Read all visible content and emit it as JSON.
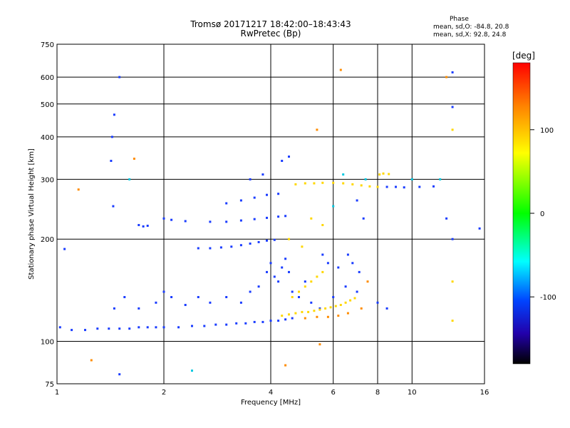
{
  "chart_data": {
    "type": "scatter",
    "title": "Tromsø 20171217 18:42:00–18:43:43",
    "subtitle": "RwPretec (Bp)",
    "xlabel": "Frequency [MHz]",
    "ylabel": "Stationary phase Virtual Height [km]",
    "x_scale": "log",
    "y_scale": "log",
    "xlim": [
      1,
      16
    ],
    "ylim": [
      75,
      750
    ],
    "x_ticks": [
      1,
      2,
      4,
      6,
      8,
      10,
      16
    ],
    "y_ticks": [
      75,
      100,
      200,
      300,
      400,
      500,
      600,
      750
    ],
    "grid": true,
    "phase_header": "Phase",
    "phase_o": "mean, sd,O: -84.8, 20.8",
    "phase_x": "mean, sd,X:  92.8, 24.8",
    "colorbar": {
      "label": "[deg]",
      "range": [
        -180,
        180
      ],
      "ticks": [
        100,
        0,
        -100
      ],
      "colors": [
        "#ff0000",
        "#ff7f00",
        "#ffff00",
        "#00ff00",
        "#00ffff",
        "#0044ff",
        "#2200aa",
        "#000000"
      ]
    },
    "series": [
      {
        "points": [
          {
            "f": 1.1,
            "h": 108
          },
          {
            "f": 1.2,
            "h": 108
          },
          {
            "f": 1.3,
            "h": 109
          },
          {
            "f": 1.4,
            "h": 109
          },
          {
            "f": 1.5,
            "h": 109
          },
          {
            "f": 1.6,
            "h": 109
          },
          {
            "f": 1.7,
            "h": 110
          },
          {
            "f": 1.8,
            "h": 110
          },
          {
            "f": 1.9,
            "h": 110
          },
          {
            "f": 2.0,
            "h": 110
          },
          {
            "f": 2.2,
            "h": 110
          },
          {
            "f": 2.4,
            "h": 111
          },
          {
            "f": 2.6,
            "h": 111
          },
          {
            "f": 2.8,
            "h": 112
          },
          {
            "f": 3.0,
            "h": 112
          },
          {
            "f": 3.2,
            "h": 113
          },
          {
            "f": 3.4,
            "h": 113
          },
          {
            "f": 3.6,
            "h": 114
          },
          {
            "f": 3.8,
            "h": 114
          },
          {
            "f": 4.0,
            "h": 115
          },
          {
            "f": 4.2,
            "h": 115
          },
          {
            "f": 4.4,
            "h": 116
          },
          {
            "f": 4.6,
            "h": 117
          },
          {
            "f": 1.45,
            "h": 125
          },
          {
            "f": 1.55,
            "h": 135
          },
          {
            "f": 1.7,
            "h": 125
          },
          {
            "f": 1.9,
            "h": 130
          },
          {
            "f": 2.0,
            "h": 140
          },
          {
            "f": 2.1,
            "h": 135
          },
          {
            "f": 2.3,
            "h": 128
          },
          {
            "f": 2.5,
            "h": 135
          },
          {
            "f": 2.7,
            "h": 130
          },
          {
            "f": 3.0,
            "h": 135
          },
          {
            "f": 3.3,
            "h": 130
          },
          {
            "f": 3.5,
            "h": 140
          },
          {
            "f": 3.7,
            "h": 145
          },
          {
            "f": 3.9,
            "h": 160
          },
          {
            "f": 4.0,
            "h": 170
          },
          {
            "f": 4.1,
            "h": 155
          },
          {
            "f": 4.2,
            "h": 150
          },
          {
            "f": 4.3,
            "h": 165
          },
          {
            "f": 4.4,
            "h": 175
          },
          {
            "f": 4.5,
            "h": 160
          },
          {
            "f": 4.6,
            "h": 140
          },
          {
            "f": 4.8,
            "h": 135
          },
          {
            "f": 5.0,
            "h": 150
          },
          {
            "f": 5.2,
            "h": 130
          },
          {
            "f": 5.5,
            "h": 125
          },
          {
            "f": 6.0,
            "h": 135
          },
          {
            "f": 6.5,
            "h": 145
          },
          {
            "f": 7.0,
            "h": 140
          },
          {
            "f": 2.5,
            "h": 188
          },
          {
            "f": 2.7,
            "h": 188
          },
          {
            "f": 2.9,
            "h": 189
          },
          {
            "f": 3.1,
            "h": 190
          },
          {
            "f": 3.3,
            "h": 192
          },
          {
            "f": 3.5,
            "h": 194
          },
          {
            "f": 3.7,
            "h": 196
          },
          {
            "f": 3.9,
            "h": 198
          },
          {
            "f": 4.1,
            "h": 199
          },
          {
            "f": 2.0,
            "h": 230
          },
          {
            "f": 2.1,
            "h": 228
          },
          {
            "f": 2.3,
            "h": 226
          },
          {
            "f": 2.7,
            "h": 225
          },
          {
            "f": 3.0,
            "h": 225
          },
          {
            "f": 3.3,
            "h": 227
          },
          {
            "f": 3.6,
            "h": 229
          },
          {
            "f": 3.9,
            "h": 231
          },
          {
            "f": 4.2,
            "h": 233
          },
          {
            "f": 4.4,
            "h": 234
          },
          {
            "f": 3.0,
            "h": 255
          },
          {
            "f": 3.3,
            "h": 260
          },
          {
            "f": 3.6,
            "h": 265
          },
          {
            "f": 3.9,
            "h": 270
          },
          {
            "f": 4.2,
            "h": 272
          },
          {
            "f": 3.5,
            "h": 300
          },
          {
            "f": 3.8,
            "h": 310
          },
          {
            "f": 4.3,
            "h": 340
          },
          {
            "f": 4.5,
            "h": 350
          },
          {
            "f": 1.7,
            "h": 220
          },
          {
            "f": 1.75,
            "h": 218
          },
          {
            "f": 1.8,
            "h": 219
          },
          {
            "f": 1.42,
            "h": 340
          },
          {
            "f": 1.43,
            "h": 400
          },
          {
            "f": 1.45,
            "h": 465
          },
          {
            "f": 1.44,
            "h": 250
          },
          {
            "f": 1.5,
            "h": 600
          },
          {
            "f": 1.02,
            "h": 110
          },
          {
            "f": 1.05,
            "h": 187
          },
          {
            "f": 1.5,
            "h": 80
          },
          {
            "f": 8.5,
            "h": 285
          },
          {
            "f": 9.0,
            "h": 285
          },
          {
            "f": 9.5,
            "h": 284
          },
          {
            "f": 10.5,
            "h": 285
          },
          {
            "f": 11.5,
            "h": 286
          },
          {
            "f": 12.5,
            "h": 230
          },
          {
            "f": 13.0,
            "h": 200
          },
          {
            "f": 13.0,
            "h": 490
          },
          {
            "f": 13.0,
            "h": 620
          },
          {
            "f": 15.5,
            "h": 215
          },
          {
            "f": 7.0,
            "h": 260
          },
          {
            "f": 7.3,
            "h": 230
          },
          {
            "f": 8.0,
            "h": 130
          },
          {
            "f": 8.5,
            "h": 125
          },
          {
            "f": 5.6,
            "h": 180
          },
          {
            "f": 5.8,
            "h": 170
          },
          {
            "f": 6.2,
            "h": 165
          },
          {
            "f": 6.6,
            "h": 180
          },
          {
            "f": 6.8,
            "h": 170
          },
          {
            "f": 7.1,
            "h": 160
          }
        ]
      },
      {
        "points": [
          {
            "f": 4.3,
            "h": 119
          },
          {
            "f": 4.5,
            "h": 120
          },
          {
            "f": 4.7,
            "h": 121
          },
          {
            "f": 4.9,
            "h": 122
          },
          {
            "f": 5.1,
            "h": 122
          },
          {
            "f": 5.3,
            "h": 123
          },
          {
            "f": 5.5,
            "h": 124
          },
          {
            "f": 5.7,
            "h": 125
          },
          {
            "f": 5.9,
            "h": 126
          },
          {
            "f": 6.1,
            "h": 127
          },
          {
            "f": 6.3,
            "h": 128
          },
          {
            "f": 6.5,
            "h": 130
          },
          {
            "f": 6.7,
            "h": 132
          },
          {
            "f": 6.9,
            "h": 134
          },
          {
            "f": 4.6,
            "h": 135
          },
          {
            "f": 4.8,
            "h": 140
          },
          {
            "f": 5.0,
            "h": 145
          },
          {
            "f": 5.2,
            "h": 150
          },
          {
            "f": 5.4,
            "h": 155
          },
          {
            "f": 5.6,
            "h": 160
          },
          {
            "f": 4.7,
            "h": 290
          },
          {
            "f": 5.0,
            "h": 292
          },
          {
            "f": 5.3,
            "h": 292
          },
          {
            "f": 5.6,
            "h": 293
          },
          {
            "f": 6.0,
            "h": 293
          },
          {
            "f": 6.4,
            "h": 292
          },
          {
            "f": 6.8,
            "h": 290
          },
          {
            "f": 7.2,
            "h": 288
          },
          {
            "f": 7.6,
            "h": 286
          },
          {
            "f": 8.0,
            "h": 285
          },
          {
            "f": 8.1,
            "h": 310
          },
          {
            "f": 8.3,
            "h": 312
          },
          {
            "f": 8.6,
            "h": 311
          },
          {
            "f": 13.0,
            "h": 420
          },
          {
            "f": 13.0,
            "h": 150
          },
          {
            "f": 13.0,
            "h": 115
          },
          {
            "f": 5.2,
            "h": 230
          },
          {
            "f": 5.6,
            "h": 220
          },
          {
            "f": 4.5,
            "h": 200
          },
          {
            "f": 4.9,
            "h": 190
          }
        ]
      },
      {
        "points": [
          {
            "f": 5.0,
            "h": 117
          },
          {
            "f": 5.4,
            "h": 118
          },
          {
            "f": 5.8,
            "h": 118
          },
          {
            "f": 6.2,
            "h": 119
          },
          {
            "f": 6.6,
            "h": 121
          },
          {
            "f": 5.5,
            "h": 98
          },
          {
            "f": 6.3,
            "h": 630
          },
          {
            "f": 1.15,
            "h": 280
          },
          {
            "f": 1.65,
            "h": 345
          },
          {
            "f": 12.5,
            "h": 600
          },
          {
            "f": 7.5,
            "h": 150
          },
          {
            "f": 7.2,
            "h": 125
          },
          {
            "f": 4.4,
            "h": 85
          },
          {
            "f": 1.25,
            "h": 88
          },
          {
            "f": 5.4,
            "h": 420
          }
        ]
      },
      {
        "points": [
          {
            "f": 6.4,
            "h": 310
          },
          {
            "f": 7.4,
            "h": 300
          },
          {
            "f": 2.4,
            "h": 82
          },
          {
            "f": 12.0,
            "h": 300
          },
          {
            "f": 10.0,
            "h": 300
          },
          {
            "f": 1.6,
            "h": 300
          },
          {
            "f": 6.0,
            "h": 250
          }
        ]
      }
    ]
  }
}
